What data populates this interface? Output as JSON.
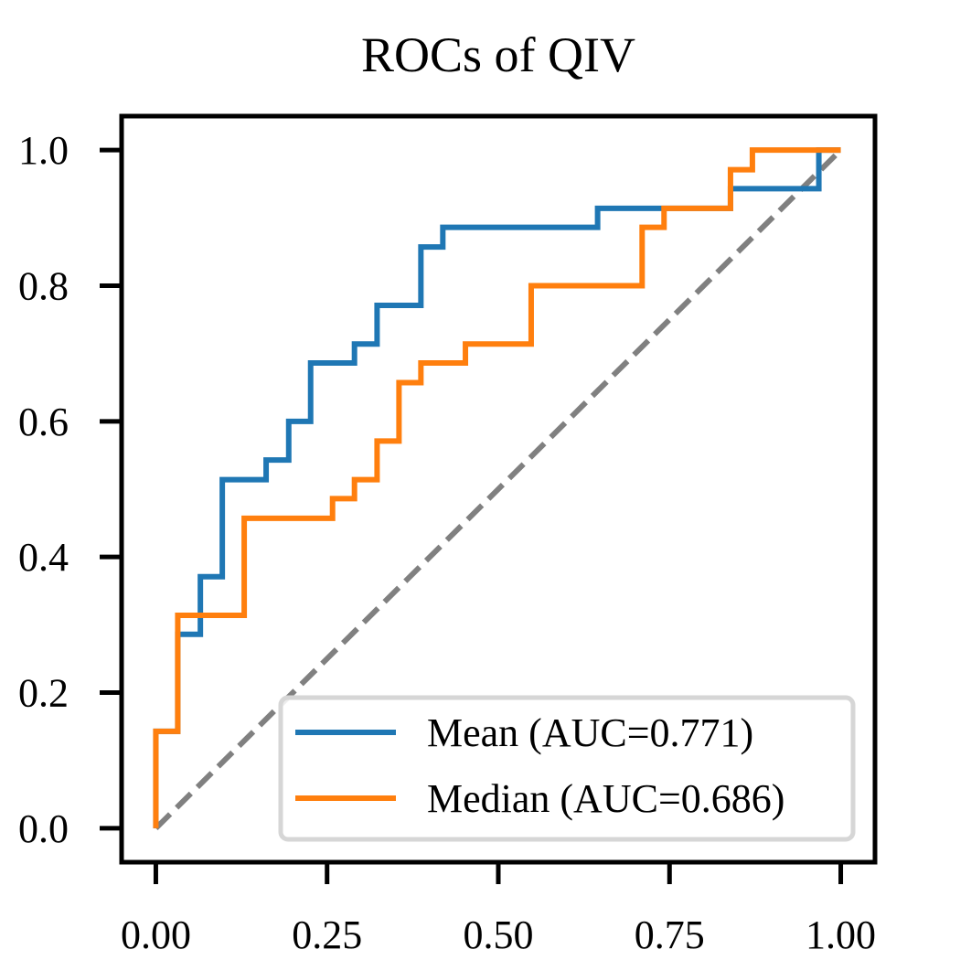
{
  "chart_data": {
    "type": "line",
    "title": "ROCs of QIV",
    "xlabel": "",
    "ylabel": "",
    "xlim": [
      -0.05,
      1.05
    ],
    "ylim": [
      -0.05,
      1.05
    ],
    "x_ticks": [
      0.0,
      0.25,
      0.5,
      0.75,
      1.0
    ],
    "x_tick_labels": [
      "0.00",
      "0.25",
      "0.50",
      "0.75",
      "1.00"
    ],
    "y_ticks": [
      0.0,
      0.2,
      0.4,
      0.6,
      0.8,
      1.0
    ],
    "y_tick_labels": [
      "0.0",
      "0.2",
      "0.4",
      "0.6",
      "0.8",
      "1.0"
    ],
    "grid": false,
    "legend_position": "lower-right",
    "series": [
      {
        "name": "Mean (AUC=0.771)",
        "color": "#1f77b4",
        "x": [
          0.0,
          0.0,
          0.032,
          0.032,
          0.065,
          0.065,
          0.097,
          0.097,
          0.161,
          0.161,
          0.194,
          0.194,
          0.226,
          0.226,
          0.29,
          0.29,
          0.323,
          0.323,
          0.387,
          0.387,
          0.419,
          0.419,
          0.645,
          0.645,
          0.839,
          0.839,
          0.968,
          0.968,
          1.0
        ],
        "y": [
          0.0,
          0.143,
          0.143,
          0.286,
          0.286,
          0.371,
          0.371,
          0.514,
          0.514,
          0.543,
          0.543,
          0.6,
          0.6,
          0.686,
          0.686,
          0.714,
          0.714,
          0.771,
          0.771,
          0.857,
          0.857,
          0.886,
          0.886,
          0.914,
          0.914,
          0.943,
          0.943,
          1.0,
          1.0
        ]
      },
      {
        "name": "Median (AUC=0.686)",
        "color": "#ff7f0e",
        "x": [
          0.0,
          0.0,
          0.032,
          0.032,
          0.129,
          0.129,
          0.258,
          0.258,
          0.29,
          0.29,
          0.323,
          0.323,
          0.355,
          0.355,
          0.387,
          0.387,
          0.452,
          0.452,
          0.548,
          0.548,
          0.71,
          0.71,
          0.742,
          0.742,
          0.839,
          0.839,
          0.871,
          0.871,
          1.0
        ],
        "y": [
          0.0,
          0.143,
          0.143,
          0.314,
          0.314,
          0.457,
          0.457,
          0.486,
          0.486,
          0.514,
          0.514,
          0.571,
          0.571,
          0.657,
          0.657,
          0.686,
          0.686,
          0.714,
          0.714,
          0.8,
          0.8,
          0.886,
          0.886,
          0.914,
          0.914,
          0.971,
          0.971,
          1.0,
          1.0
        ]
      }
    ],
    "reference_line": {
      "x": [
        0.0,
        1.0
      ],
      "y": [
        0.0,
        1.0
      ],
      "color": "#808080",
      "style": "dashed"
    }
  }
}
